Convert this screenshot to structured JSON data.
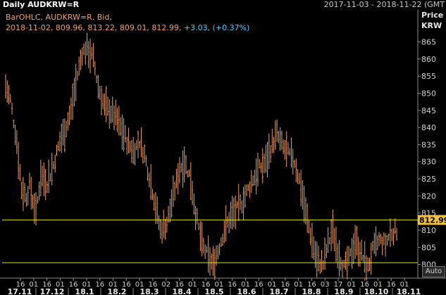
{
  "header": {
    "title": "Daily AUDKRW=R",
    "date_range": "2017-11-03 - 2018-11-22 (GMT"
  },
  "legend": {
    "line1": "BarOHLC, AUDKRW=R, Bid,",
    "line2_values": "2018-11-02, 809.96, 813.22, 809.01, 812.99,",
    "line2_change": "+3.03, (+0.37%)"
  },
  "axis": {
    "price_label_1": "Price",
    "price_label_2": "KRW",
    "auto_label": "Auto",
    "last_price_tag": "812.99"
  },
  "colors": {
    "background": "#000000",
    "bars": "#e8a060",
    "reference_lines": "#e6e600",
    "last_price_tag_bg": "#f0c040",
    "change_text": "#40d0ff",
    "legend_text": "#f0a060"
  },
  "chart_data": {
    "type": "bar",
    "subtype": "ohlc",
    "series": [
      {
        "name": "AUDKRW=R",
        "points": [
          [
            0,
            852
          ],
          [
            3,
            848
          ],
          [
            7,
            836
          ],
          [
            10,
            822
          ],
          [
            13,
            820
          ],
          [
            15,
            823
          ],
          [
            19,
            815
          ],
          [
            22,
            826
          ],
          [
            26,
            824
          ],
          [
            30,
            829
          ],
          [
            34,
            836
          ],
          [
            37,
            839
          ],
          [
            41,
            845
          ],
          [
            44,
            853
          ],
          [
            48,
            862
          ],
          [
            51,
            863
          ],
          [
            55,
            860
          ],
          [
            58,
            852
          ],
          [
            62,
            846
          ],
          [
            65,
            845
          ],
          [
            69,
            843
          ],
          [
            72,
            840
          ],
          [
            76,
            836
          ],
          [
            80,
            833
          ],
          [
            84,
            836
          ],
          [
            87,
            832
          ],
          [
            91,
            824
          ],
          [
            94,
            817
          ],
          [
            97,
            810
          ],
          [
            101,
            812
          ],
          [
            105,
            820
          ],
          [
            109,
            828
          ],
          [
            112,
            830
          ],
          [
            116,
            825
          ],
          [
            119,
            815
          ],
          [
            123,
            806
          ],
          [
            127,
            802
          ],
          [
            130,
            800
          ],
          [
            133,
            804
          ],
          [
            137,
            810
          ],
          [
            141,
            814
          ],
          [
            145,
            816
          ],
          [
            148,
            818
          ],
          [
            152,
            822
          ],
          [
            155,
            825
          ],
          [
            159,
            828
          ],
          [
            163,
            830
          ],
          [
            167,
            835
          ],
          [
            170,
            838
          ],
          [
            174,
            834
          ],
          [
            178,
            832
          ],
          [
            181,
            830
          ],
          [
            185,
            823
          ],
          [
            188,
            815
          ],
          [
            192,
            807
          ],
          [
            195,
            801
          ],
          [
            199,
            800
          ],
          [
            202,
            806
          ],
          [
            205,
            810
          ],
          [
            208,
            804
          ],
          [
            212,
            799
          ],
          [
            215,
            801
          ],
          [
            219,
            807
          ],
          [
            223,
            803
          ],
          [
            227,
            799
          ],
          [
            230,
            804
          ],
          [
            234,
            807
          ],
          [
            238,
            806
          ],
          [
            241,
            809
          ],
          [
            245,
            810
          ]
        ]
      }
    ],
    "reference_lines": [
      812.99,
      800.5
    ],
    "ylim": [
      796,
      868
    ],
    "yticks": [
      800,
      805,
      810,
      815,
      820,
      825,
      830,
      835,
      840,
      845,
      850,
      855,
      860,
      865
    ],
    "x_tick_labels": [
      "16",
      "01",
      "16",
      "01",
      "16",
      "01",
      "16",
      "01",
      "16",
      "01",
      "16",
      "02",
      "16",
      "01",
      "16",
      "01",
      "16",
      "01",
      "16",
      "01",
      "16",
      "01",
      "16",
      "03",
      "17",
      "01",
      "16",
      "01",
      "16",
      "01"
    ],
    "x_month_labels": [
      "17.11",
      "17.12",
      "18.1",
      "18.2",
      "18.3",
      "18.4",
      "18.5",
      "18.6",
      "18.7",
      "18.8",
      "18.9",
      "18.10",
      "18.11"
    ],
    "grid": false
  }
}
